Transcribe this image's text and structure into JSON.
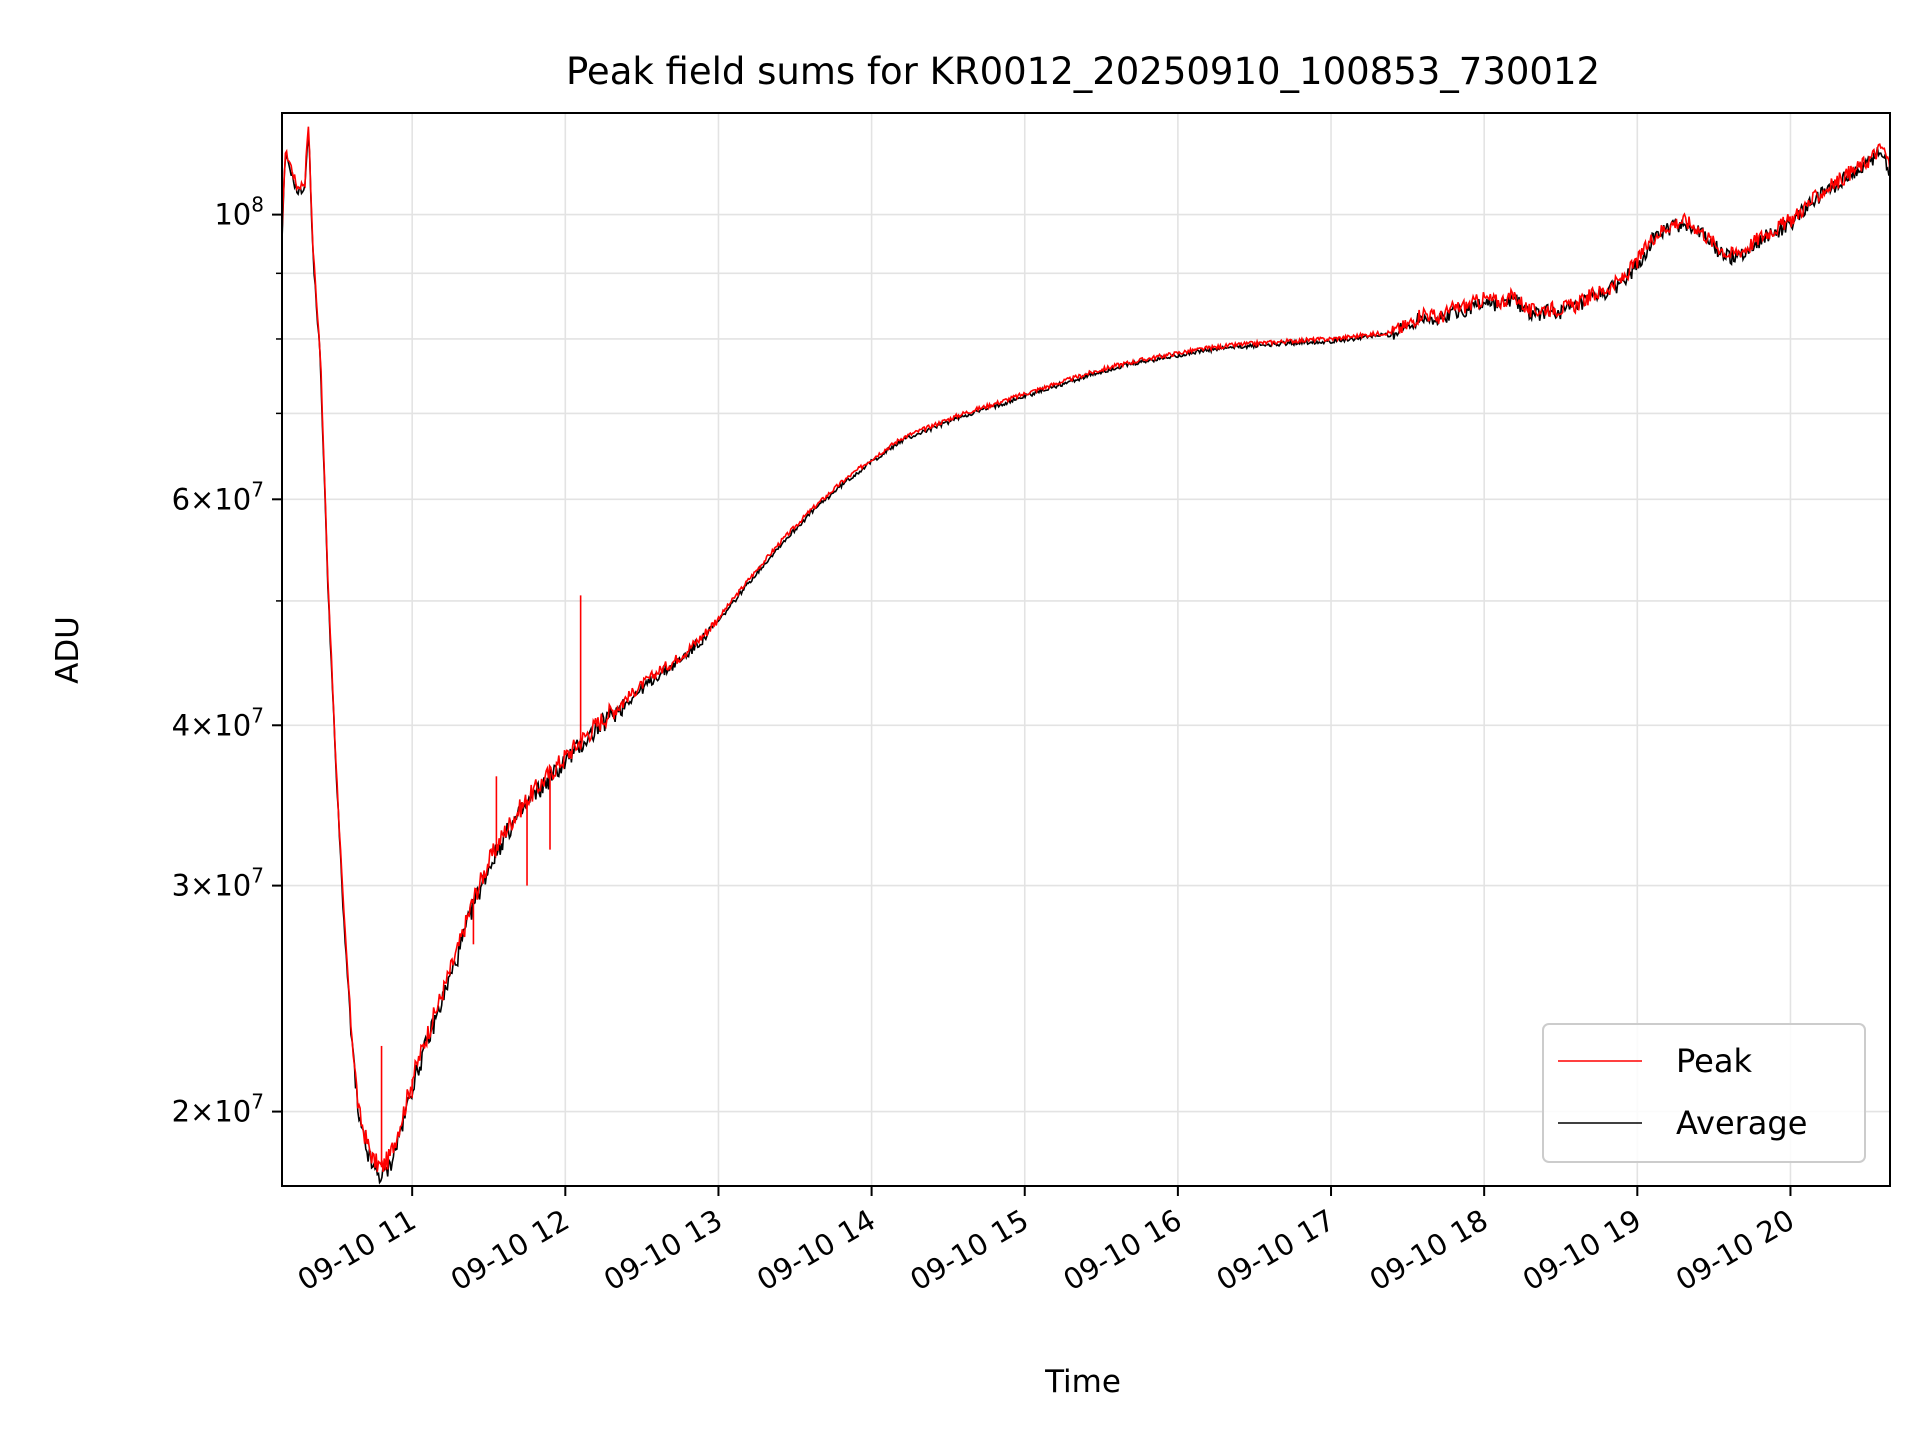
{
  "chart_data": {
    "type": "line",
    "title": "Peak field sums for KR0012_20250910_100853_730012",
    "xlabel": "Time",
    "ylabel": "ADU",
    "y_scale": "log",
    "x_range_hours": [
      10.15,
      20.65
    ],
    "ylim": [
      17500000,
      120000000
    ],
    "grid": true,
    "legend_position": "lower-right",
    "x_ticks": [
      {
        "value": 11,
        "label": "09-10 11"
      },
      {
        "value": 12,
        "label": "09-10 12"
      },
      {
        "value": 13,
        "label": "09-10 13"
      },
      {
        "value": 14,
        "label": "09-10 14"
      },
      {
        "value": 15,
        "label": "09-10 15"
      },
      {
        "value": 16,
        "label": "09-10 16"
      },
      {
        "value": 17,
        "label": "09-10 17"
      },
      {
        "value": 18,
        "label": "09-10 18"
      },
      {
        "value": 19,
        "label": "09-10 19"
      },
      {
        "value": 20,
        "label": "09-10 20"
      }
    ],
    "y_major_ticks": [
      {
        "value": 20000000,
        "mantissa": "2",
        "base": "10",
        "exp": "7"
      },
      {
        "value": 30000000,
        "mantissa": "3",
        "base": "10",
        "exp": "7"
      },
      {
        "value": 40000000,
        "mantissa": "4",
        "base": "10",
        "exp": "7"
      },
      {
        "value": 60000000,
        "mantissa": "6",
        "base": "10",
        "exp": "7"
      },
      {
        "value": 100000000,
        "mantissa": "",
        "base": "10",
        "exp": "8"
      }
    ],
    "y_minor_gridlines": [
      50000000,
      70000000,
      80000000,
      90000000
    ],
    "series": [
      {
        "name": "Peak",
        "color": "#ff0000",
        "x": [
          10.15,
          10.17,
          10.2,
          10.25,
          10.3,
          10.32,
          10.33,
          10.35,
          10.4,
          10.45,
          10.5,
          10.55,
          10.6,
          10.65,
          10.7,
          10.75,
          10.8,
          10.85,
          10.9,
          10.95,
          11.0,
          11.1,
          11.2,
          11.3,
          11.4,
          11.5,
          11.6,
          11.7,
          11.8,
          11.9,
          12.0,
          12.1,
          12.2,
          12.3,
          12.4,
          12.5,
          12.6,
          12.7,
          12.8,
          12.9,
          13.0,
          13.2,
          13.4,
          13.6,
          13.8,
          14.0,
          14.2,
          14.4,
          14.6,
          14.8,
          15.0,
          15.2,
          15.4,
          15.6,
          15.8,
          16.0,
          16.2,
          16.4,
          16.6,
          16.8,
          17.0,
          17.2,
          17.4,
          17.5,
          17.6,
          17.7,
          17.8,
          17.9,
          18.0,
          18.1,
          18.2,
          18.3,
          18.4,
          18.5,
          18.6,
          18.7,
          18.8,
          18.9,
          19.0,
          19.1,
          19.2,
          19.3,
          19.4,
          19.5,
          19.6,
          19.7,
          19.8,
          19.9,
          20.0,
          20.1,
          20.2,
          20.3,
          20.4,
          20.5,
          20.6,
          20.65
        ],
        "y": [
          96000000,
          112000000,
          110000000,
          105000000,
          106000000,
          118000000,
          112000000,
          95000000,
          78000000,
          52000000,
          38000000,
          29000000,
          23500000,
          20000000,
          19000000,
          18300000,
          18100000,
          18400000,
          19200000,
          20100000,
          21200000,
          23000000,
          24800000,
          26800000,
          29300000,
          31300000,
          33000000,
          34400000,
          35600000,
          36700000,
          37800000,
          38900000,
          40000000,
          41000000,
          42000000,
          43000000,
          44000000,
          44800000,
          45800000,
          47000000,
          48500000,
          52000000,
          55500000,
          58800000,
          61800000,
          64500000,
          67000000,
          68500000,
          70000000,
          71200000,
          72500000,
          73800000,
          75100000,
          76300000,
          77200000,
          78000000,
          78700000,
          79200000,
          79500000,
          79800000,
          80000000,
          80500000,
          81000000,
          82000000,
          84000000,
          83000000,
          84500000,
          85000000,
          86000000,
          85500000,
          86500000,
          84000000,
          84500000,
          84500000,
          85000000,
          86500000,
          87500000,
          89000000,
          92000000,
          96000000,
          98000000,
          99000000,
          97500000,
          95000000,
          93000000,
          94000000,
          96000000,
          97500000,
          99000000,
          101500000,
          104000000,
          106000000,
          108000000,
          110000000,
          113000000,
          109000000
        ],
        "spikes": [
          {
            "x": 11.55,
            "y": 36500000
          },
          {
            "x": 12.1,
            "y": 50500000
          },
          {
            "x": 10.8,
            "y": 22500000
          },
          {
            "x": 11.0,
            "y": 20500000
          },
          {
            "x": 11.4,
            "y": 27000000
          },
          {
            "x": 11.75,
            "y": 30000000
          },
          {
            "x": 11.9,
            "y": 32000000
          }
        ]
      },
      {
        "name": "Average",
        "color": "#000000",
        "x": [
          10.15,
          10.17,
          10.2,
          10.25,
          10.3,
          10.32,
          10.33,
          10.35,
          10.4,
          10.45,
          10.5,
          10.55,
          10.6,
          10.65,
          10.7,
          10.75,
          10.8,
          10.85,
          10.9,
          10.95,
          11.0,
          11.1,
          11.2,
          11.3,
          11.4,
          11.5,
          11.6,
          11.7,
          11.8,
          11.9,
          12.0,
          12.1,
          12.2,
          12.3,
          12.4,
          12.5,
          12.6,
          12.7,
          12.8,
          12.9,
          13.0,
          13.2,
          13.4,
          13.6,
          13.8,
          14.0,
          14.2,
          14.4,
          14.6,
          14.8,
          15.0,
          15.2,
          15.4,
          15.6,
          15.8,
          16.0,
          16.2,
          16.4,
          16.6,
          16.8,
          17.0,
          17.2,
          17.4,
          17.5,
          17.6,
          17.7,
          17.8,
          17.9,
          18.0,
          18.1,
          18.2,
          18.3,
          18.4,
          18.5,
          18.6,
          18.7,
          18.8,
          18.9,
          19.0,
          19.1,
          19.2,
          19.3,
          19.4,
          19.5,
          19.6,
          19.7,
          19.8,
          19.9,
          20.0,
          20.1,
          20.2,
          20.3,
          20.4,
          20.5,
          20.6,
          20.65
        ],
        "y": [
          95000000,
          111000000,
          109000000,
          104000000,
          105000000,
          117000000,
          111000000,
          94000000,
          77000000,
          51500000,
          37500000,
          28700000,
          23200000,
          19700000,
          18700000,
          18000000,
          17800000,
          18100000,
          18900000,
          19800000,
          20900000,
          22700000,
          24500000,
          26500000,
          29000000,
          31000000,
          32700000,
          34100000,
          35300000,
          36400000,
          37500000,
          38600000,
          39700000,
          40700000,
          41700000,
          42700000,
          43700000,
          44500000,
          45500000,
          46700000,
          48200000,
          51700000,
          55200000,
          58500000,
          61500000,
          64200000,
          66700000,
          68200000,
          69700000,
          70900000,
          72200000,
          73500000,
          74800000,
          76000000,
          76900000,
          77700000,
          78400000,
          78900000,
          79200000,
          79500000,
          79700000,
          80200000,
          80700000,
          81700000,
          83500000,
          82500000,
          84000000,
          84500000,
          85500000,
          85000000,
          86000000,
          83500000,
          84000000,
          84000000,
          84500000,
          86000000,
          87000000,
          88500000,
          91500000,
          95500000,
          97500000,
          98500000,
          97000000,
          94500000,
          92500000,
          93500000,
          95500000,
          97000000,
          98500000,
          101000000,
          103500000,
          105500000,
          107500000,
          109500000,
          112500000,
          107000000
        ]
      }
    ]
  }
}
